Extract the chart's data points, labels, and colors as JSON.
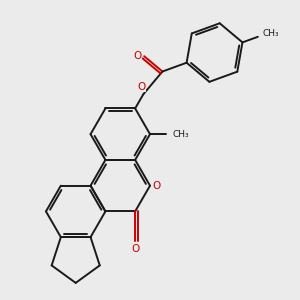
{
  "background_color": "#EBEBEB",
  "bond_color": "#1a1a1a",
  "oxygen_color": "#CC0000",
  "line_width": 1.4,
  "figsize": [
    3.0,
    3.0
  ],
  "dpi": 100,
  "xlim": [
    0,
    10
  ],
  "ylim": [
    0,
    10
  ]
}
